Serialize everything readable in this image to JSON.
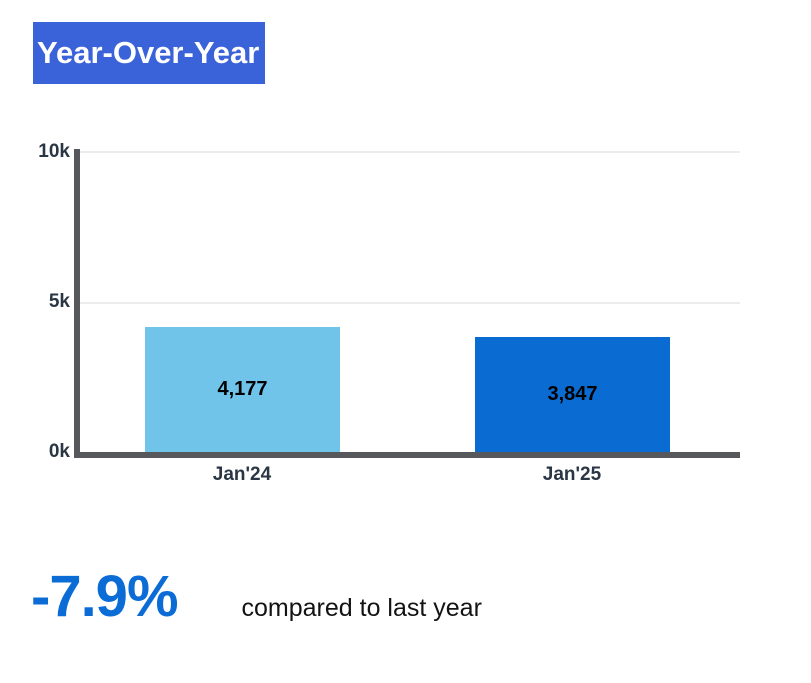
{
  "title": {
    "text": "Year-Over-Year",
    "bg_color": "#3a63d9",
    "text_color": "#ffffff"
  },
  "chart_data": {
    "type": "bar",
    "title": "Year-Over-Year",
    "categories": [
      "Jan'24",
      "Jan'25"
    ],
    "values": [
      4177,
      3847
    ],
    "value_labels": [
      "4,177",
      "3,847"
    ],
    "bar_colors": [
      "#70c4e9",
      "#0a6bd3"
    ],
    "yticks": [
      "0k",
      "5k",
      "10k"
    ],
    "ylim": [
      0,
      10000
    ],
    "grid": true,
    "legend": "none",
    "axis_color": "#56585c",
    "tick_label_color": "#2b3644"
  },
  "kpi": {
    "value": "-7.9%",
    "description": "compared to last year",
    "value_color": "#0b6cd6"
  }
}
